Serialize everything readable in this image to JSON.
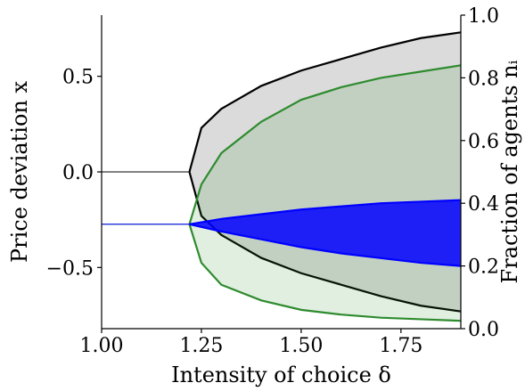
{
  "chart_data": {
    "type": "line",
    "title": "",
    "xlabel": "Intensity of choice δ",
    "ylabel_left": "Price deviation x",
    "ylabel_right": "Fraction of agents nᵢ",
    "xlim": [
      1.0,
      1.9
    ],
    "ylim_left": [
      -0.82,
      0.82
    ],
    "ylim_right": [
      0.0,
      1.0
    ],
    "x_ticks": [
      {
        "value": 1.0,
        "label": "1.00"
      },
      {
        "value": 1.25,
        "label": "1.25"
      },
      {
        "value": 1.5,
        "label": "1.50"
      },
      {
        "value": 1.75,
        "label": "1.75"
      }
    ],
    "y_left_ticks": [
      {
        "value": 0.5,
        "label": "0.5"
      },
      {
        "value": 0.0,
        "label": "0.0"
      },
      {
        "value": -0.5,
        "label": "−0.5"
      }
    ],
    "y_right_ticks": [
      {
        "value": 0.0,
        "label": "0.0"
      },
      {
        "value": 0.2,
        "label": "0.2"
      },
      {
        "value": 0.4,
        "label": "0.4"
      },
      {
        "value": 0.6,
        "label": "0.6"
      },
      {
        "value": 0.8,
        "label": "0.8"
      },
      {
        "value": 1.0,
        "label": "1.0"
      }
    ],
    "bifurcation_point": 1.22,
    "series": [
      {
        "axis": "left",
        "color": "#000000",
        "stable_value": 0.0,
        "upper": [
          [
            1.22,
            0.0
          ],
          [
            1.25,
            0.23
          ],
          [
            1.3,
            0.33
          ],
          [
            1.4,
            0.45
          ],
          [
            1.5,
            0.53
          ],
          [
            1.6,
            0.59
          ],
          [
            1.7,
            0.65
          ],
          [
            1.8,
            0.7
          ],
          [
            1.9,
            0.73
          ]
        ],
        "lower": [
          [
            1.22,
            0.0
          ],
          [
            1.25,
            -0.23
          ],
          [
            1.3,
            -0.33
          ],
          [
            1.4,
            -0.45
          ],
          [
            1.5,
            -0.53
          ],
          [
            1.6,
            -0.59
          ],
          [
            1.7,
            -0.65
          ],
          [
            1.8,
            -0.7
          ],
          [
            1.9,
            -0.73
          ]
        ]
      },
      {
        "axis": "right",
        "color": "#2e8b2e",
        "stable_value": 0.333,
        "upper": [
          [
            1.22,
            0.333
          ],
          [
            1.25,
            0.46
          ],
          [
            1.3,
            0.56
          ],
          [
            1.4,
            0.66
          ],
          [
            1.5,
            0.73
          ],
          [
            1.6,
            0.77
          ],
          [
            1.7,
            0.8
          ],
          [
            1.8,
            0.82
          ],
          [
            1.9,
            0.84
          ]
        ],
        "lower": [
          [
            1.22,
            0.333
          ],
          [
            1.25,
            0.21
          ],
          [
            1.3,
            0.14
          ],
          [
            1.4,
            0.09
          ],
          [
            1.5,
            0.06
          ],
          [
            1.6,
            0.045
          ],
          [
            1.7,
            0.035
          ],
          [
            1.8,
            0.03
          ],
          [
            1.9,
            0.025
          ]
        ]
      },
      {
        "axis": "right",
        "color": "#0000ff",
        "stable_value": 0.333,
        "upper": [
          [
            1.22,
            0.333
          ],
          [
            1.3,
            0.35
          ],
          [
            1.4,
            0.365
          ],
          [
            1.5,
            0.38
          ],
          [
            1.6,
            0.39
          ],
          [
            1.7,
            0.4
          ],
          [
            1.8,
            0.405
          ],
          [
            1.9,
            0.41
          ]
        ],
        "lower": [
          [
            1.22,
            0.333
          ],
          [
            1.3,
            0.31
          ],
          [
            1.4,
            0.285
          ],
          [
            1.5,
            0.26
          ],
          [
            1.6,
            0.24
          ],
          [
            1.7,
            0.225
          ],
          [
            1.8,
            0.21
          ],
          [
            1.9,
            0.2
          ]
        ]
      }
    ]
  }
}
